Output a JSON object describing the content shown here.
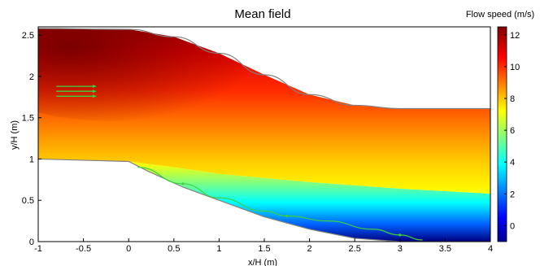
{
  "chart_data": {
    "type": "heatmap",
    "title": "Mean field",
    "xlabel": "x/H (m)",
    "ylabel": "y/H (m)",
    "xlim": [
      -1,
      4
    ],
    "ylim": [
      0,
      2.6
    ],
    "x_ticks": [
      -1,
      -0.5,
      0,
      0.5,
      1,
      1.5,
      2,
      2.5,
      3,
      3.5,
      4
    ],
    "x_tick_labels": [
      "-1",
      "-0.5",
      "0",
      "0.5",
      "1",
      "1.5",
      "2",
      "2.5",
      "3",
      "3.5",
      "4"
    ],
    "y_ticks": [
      0,
      0.5,
      1,
      1.5,
      2,
      2.5
    ],
    "y_tick_labels": [
      "0",
      "0.5",
      "1",
      "1.5",
      "2",
      "2.5"
    ],
    "colorbar": {
      "label": "Flow speed (m/s)",
      "min": -1,
      "max": 12.5,
      "ticks": [
        0,
        2,
        4,
        6,
        8,
        10,
        12
      ],
      "tick_labels": [
        "0",
        "2",
        "4",
        "6",
        "8",
        "10",
        "12"
      ],
      "colormap": "jet"
    },
    "bottom_wall": [
      [
        -1,
        1.0
      ],
      [
        0,
        0.97
      ],
      [
        0.2,
        0.86
      ],
      [
        0.6,
        0.66
      ],
      [
        1,
        0.5
      ],
      [
        1.5,
        0.3
      ],
      [
        2,
        0.15
      ],
      [
        2.5,
        0.04
      ],
      [
        3,
        0.0
      ],
      [
        4,
        0.0
      ]
    ],
    "top_wall": [
      [
        -1,
        2.58
      ],
      [
        0,
        2.57
      ],
      [
        0.5,
        2.48
      ],
      [
        1,
        2.28
      ],
      [
        1.5,
        2.02
      ],
      [
        2,
        1.78
      ],
      [
        2.5,
        1.65
      ],
      [
        3,
        1.61
      ],
      [
        4,
        1.61
      ]
    ],
    "separation_line": [
      [
        0.1,
        0.9
      ],
      [
        0.6,
        0.7
      ],
      [
        1,
        0.53
      ],
      [
        1.5,
        0.37
      ],
      [
        1.75,
        0.31
      ],
      [
        2.2,
        0.25
      ],
      [
        2.7,
        0.15
      ],
      [
        3.0,
        0.08
      ],
      [
        3.25,
        0.02
      ]
    ],
    "inflow_arrows_y": [
      1.88,
      1.82,
      1.76
    ],
    "inflow_arrows_x": [
      -0.8,
      -0.38
    ],
    "colors": {
      "wall_line": "#808080",
      "streamline": "#3dd13d",
      "axis": "#000000"
    }
  }
}
